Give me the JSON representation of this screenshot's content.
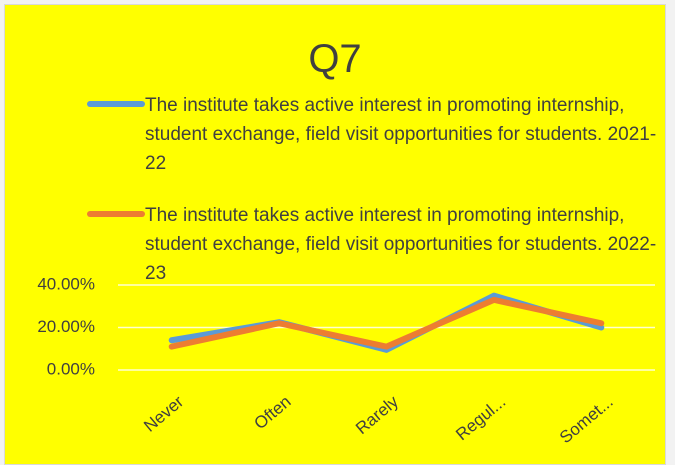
{
  "chart_data": {
    "type": "line",
    "title": "Q7",
    "categories": [
      "Never",
      "Often",
      "Rarely",
      "Regul...",
      "Somet..."
    ],
    "series": [
      {
        "name": "The institute takes active interest in promoting internship, student exchange, field visit opportunities for students. 2021-22",
        "color": "#5b9bd5",
        "values": [
          14,
          22.5,
          9.5,
          35,
          20
        ]
      },
      {
        "name": "The institute takes active interest in promoting internship, student exchange, field visit opportunities for students. 2022-23",
        "color": "#ed7d31",
        "values": [
          11,
          22,
          11,
          33,
          22
        ]
      }
    ],
    "ylim": [
      0,
      40
    ],
    "yticks": [
      {
        "value": 0,
        "label": "0.00%"
      },
      {
        "value": 20,
        "label": "20.00%"
      },
      {
        "value": 40,
        "label": "40.00%"
      }
    ],
    "grid": true,
    "legend": "top"
  }
}
